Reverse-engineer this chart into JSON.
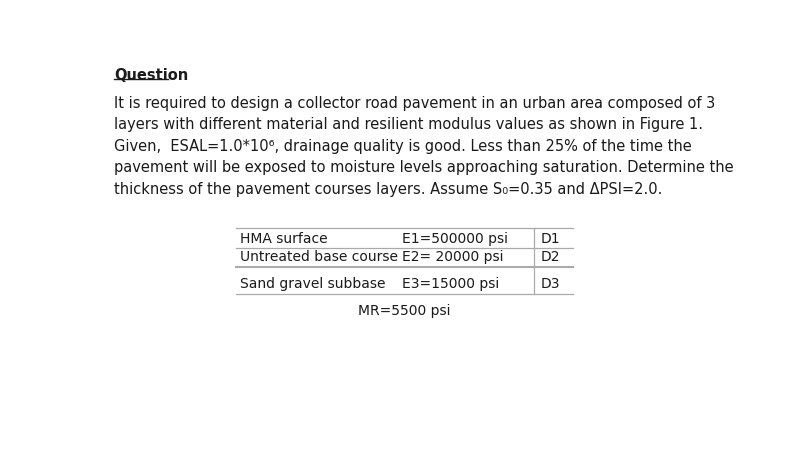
{
  "bg_color": "#ffffff",
  "title": "Question",
  "lines": [
    "It is required to design a collector road pavement in an urban area composed of 3",
    "layers with different material and resilient modulus values as shown in Figure 1.",
    "Given,  ESAL=1.0*10⁶, drainage quality is good. Less than 25% of the time the",
    "pavement will be exposed to moisture levels approaching saturation. Determine the",
    "thickness of the pavement courses layers. Assume S₀=0.35 and ΔPSI=2.0."
  ],
  "table_rows": [
    {
      "layer": "HMA surface",
      "modulus": "E1=500000 psi",
      "depth": "D1"
    },
    {
      "layer": "Untreated base course",
      "modulus": "E2= 20000 psi",
      "depth": "D2"
    },
    {
      "layer": "Sand gravel subbase",
      "modulus": "E3=15000 psi",
      "depth": "D3"
    }
  ],
  "footer": "MR=5500 psi",
  "title_fontsize": 10.5,
  "body_fontsize": 10.5,
  "table_fontsize": 10.0,
  "line_color": "#aaaaaa",
  "text_color": "#1a1a1a"
}
